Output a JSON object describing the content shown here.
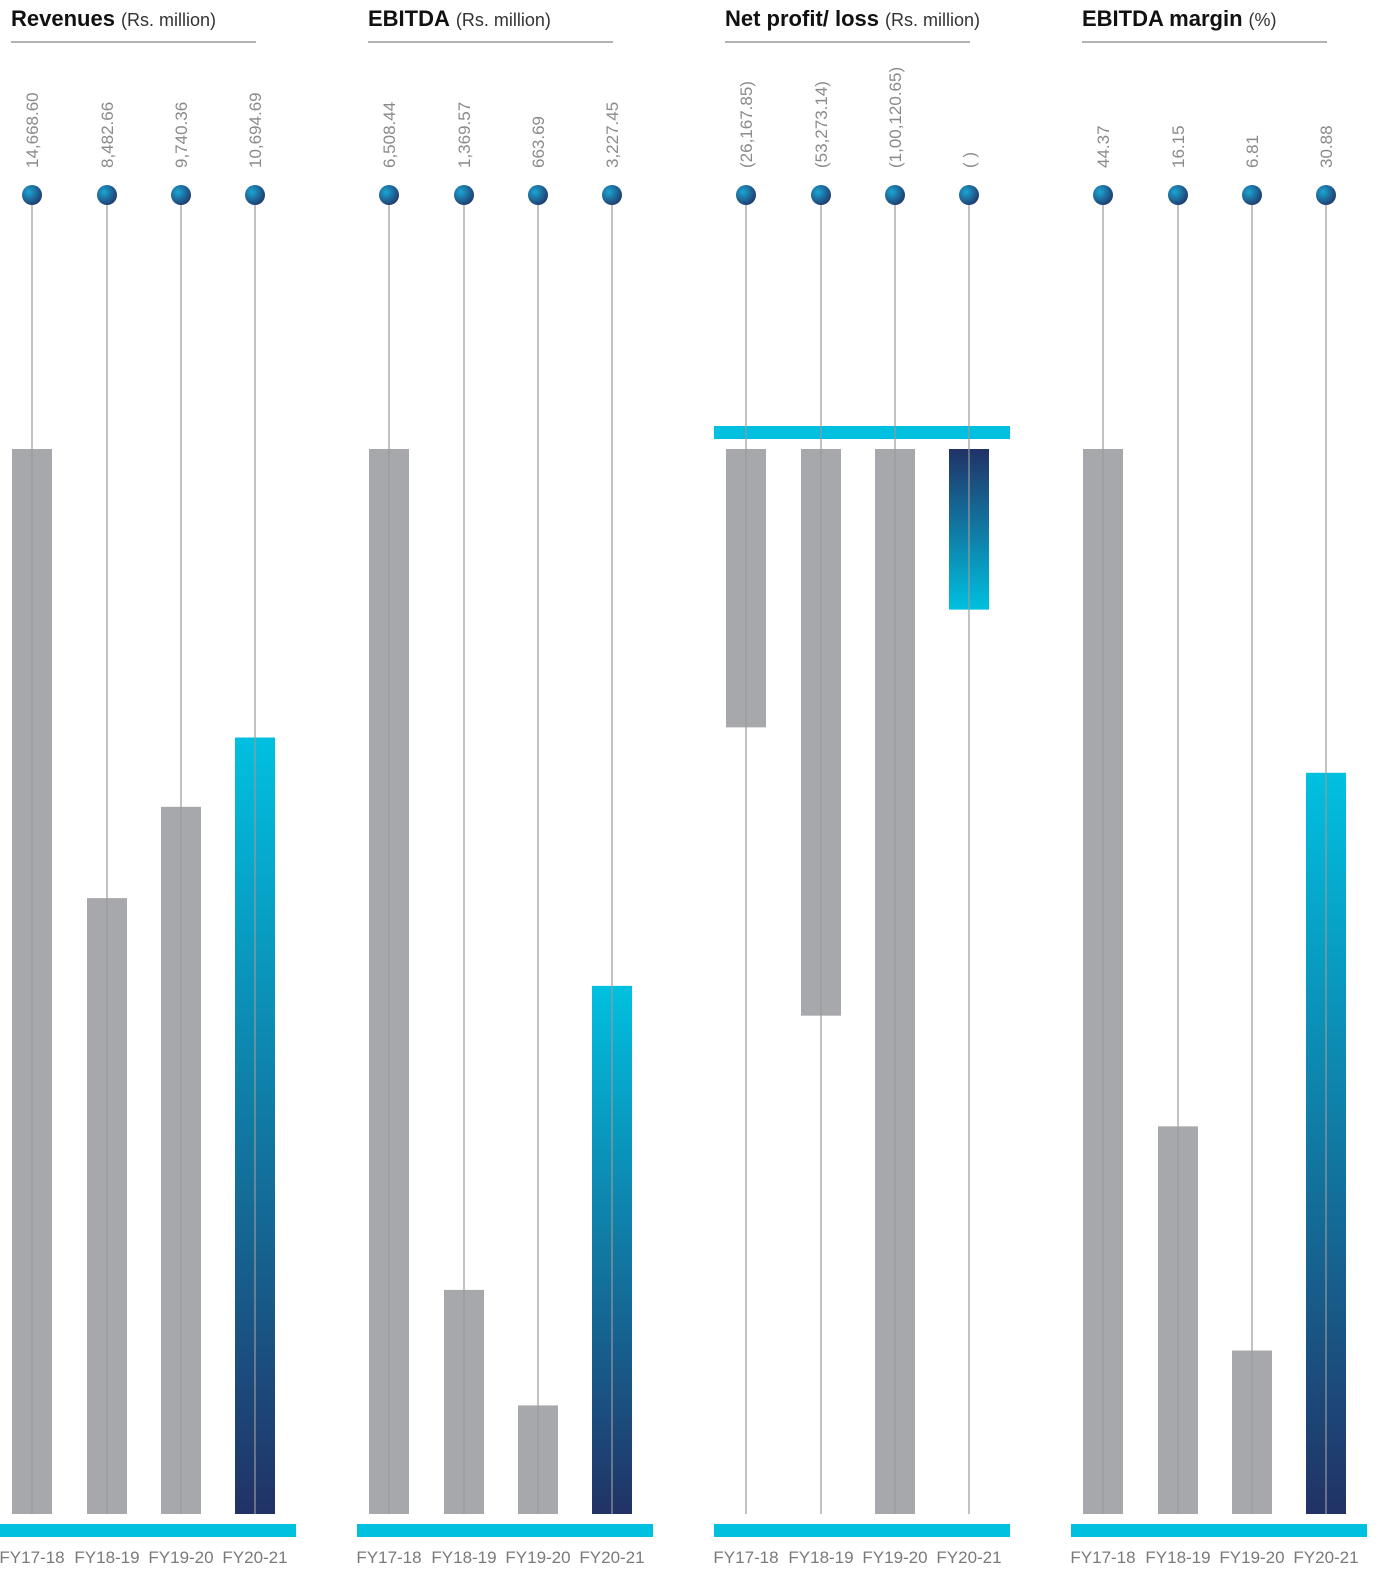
{
  "colors": {
    "bar_gray": "#a7a8ab",
    "accent_cyan": "#00c0e0",
    "accent_navy": "#213266",
    "stem": "#9a9a9a",
    "rule": "#999999"
  },
  "chart_data": [
    {
      "type": "bar",
      "title": "Revenues",
      "unit": "(Rs. million)",
      "categories": [
        "FY17-18",
        "FY18-19",
        "FY19-20",
        "FY20-21"
      ],
      "values": [
        14668.6,
        8482.66,
        9740.36,
        10694.69
      ],
      "value_labels": [
        "14,668.60",
        "8,482.66",
        "9,740.36",
        "10,694.69"
      ],
      "highlight_index": 3,
      "ylim": [
        0,
        14668.6
      ]
    },
    {
      "type": "bar",
      "title": "EBITDA",
      "unit": "(Rs. million)",
      "categories": [
        "FY17-18",
        "FY18-19",
        "FY19-20",
        "FY20-21"
      ],
      "values": [
        6508.44,
        1369.57,
        663.69,
        3227.45
      ],
      "value_labels": [
        "6,508.44",
        "1,369.57",
        "663.69",
        "3,227.45"
      ],
      "highlight_index": 3,
      "ylim": [
        0,
        6508.44
      ]
    },
    {
      "type": "bar",
      "title": "Net profit/ loss",
      "unit": "(Rs. million)",
      "categories": [
        "FY17-18",
        "FY18-19",
        "FY19-20",
        "FY20-21"
      ],
      "values": [
        -26167.85,
        -53273.14,
        -100120.65,
        -15100
      ],
      "value_labels": [
        "(26,167.85)",
        "(53,273.14)",
        "(1,00,120.65)",
        "( )"
      ],
      "highlight_index": 3,
      "ylim": [
        -100120.65,
        0
      ]
    },
    {
      "type": "bar",
      "title": "EBITDA margin",
      "unit": "(%)",
      "categories": [
        "FY17-18",
        "FY18-19",
        "FY19-20",
        "FY20-21"
      ],
      "values": [
        44.37,
        16.15,
        6.81,
        30.88
      ],
      "value_labels": [
        "44.37",
        "16.15",
        "6.81",
        "30.88"
      ],
      "highlight_index": 3,
      "ylim": [
        0,
        44.37
      ]
    }
  ]
}
